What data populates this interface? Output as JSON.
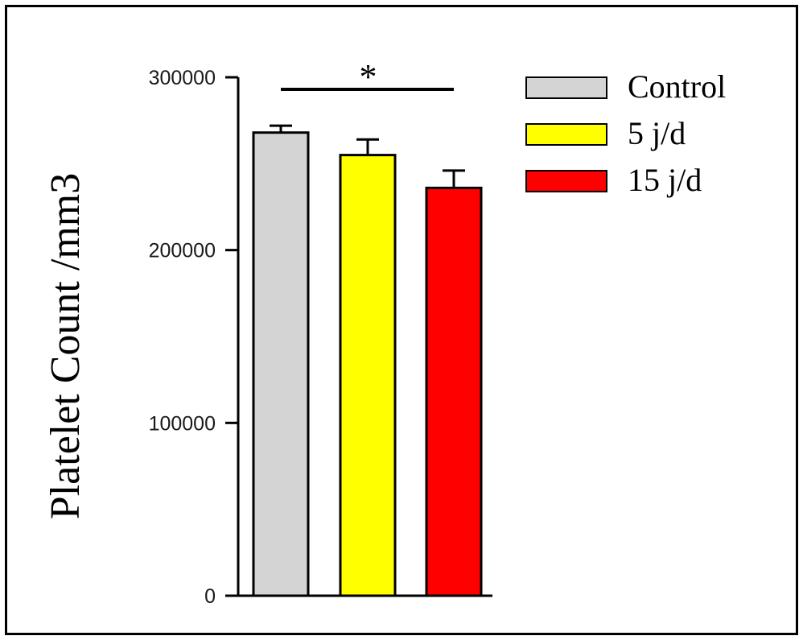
{
  "chart_data": {
    "type": "bar",
    "categories": [
      "Control",
      "5 j/d",
      "15 j/d"
    ],
    "series": [
      {
        "name": "Control",
        "color": "#d4d4d4",
        "value": 268000,
        "error": 4000
      },
      {
        "name": "5 j/d",
        "color": "#ffff00",
        "value": 255000,
        "error": 9000
      },
      {
        "name": "15 j/d",
        "color": "#ff0000",
        "value": 236000,
        "error": 10000
      }
    ],
    "ylabel": "Platelet Count /mm3",
    "ylim": [
      0,
      300000
    ],
    "yticks": [
      "0",
      "100000",
      "200000",
      "300000"
    ],
    "ytick_values": [
      0,
      100000,
      200000,
      300000
    ],
    "significance": {
      "label": "*",
      "from": "Control",
      "to": "15 j/d"
    },
    "legend_position": "top-right",
    "grid": false
  }
}
